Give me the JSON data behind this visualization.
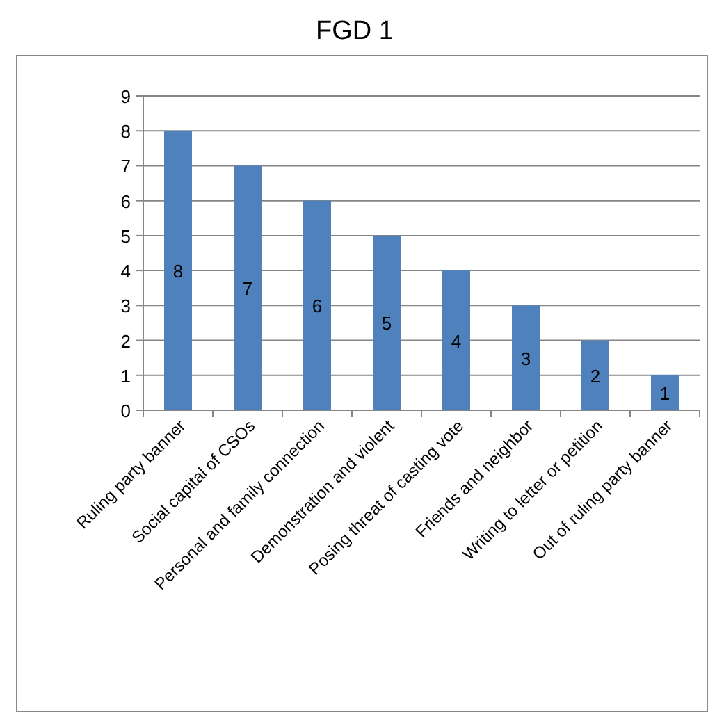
{
  "chart_data": {
    "type": "bar",
    "title": "FGD 1",
    "categories": [
      "Ruling party banner",
      "Social capital of CSOs",
      "Personal and family connection",
      "Demonstration and violent",
      "Posing threat of casting vote",
      "Friends and neighbor",
      "Writing to letter or petition",
      "Out of ruling party banner"
    ],
    "values": [
      8,
      7,
      6,
      5,
      4,
      3,
      2,
      1
    ],
    "color": "#4f81bd",
    "ylim": [
      0,
      9
    ],
    "yticks": [
      0,
      1,
      2,
      3,
      4,
      5,
      6,
      7,
      8,
      9
    ],
    "grid": "y",
    "data_labels": true
  }
}
